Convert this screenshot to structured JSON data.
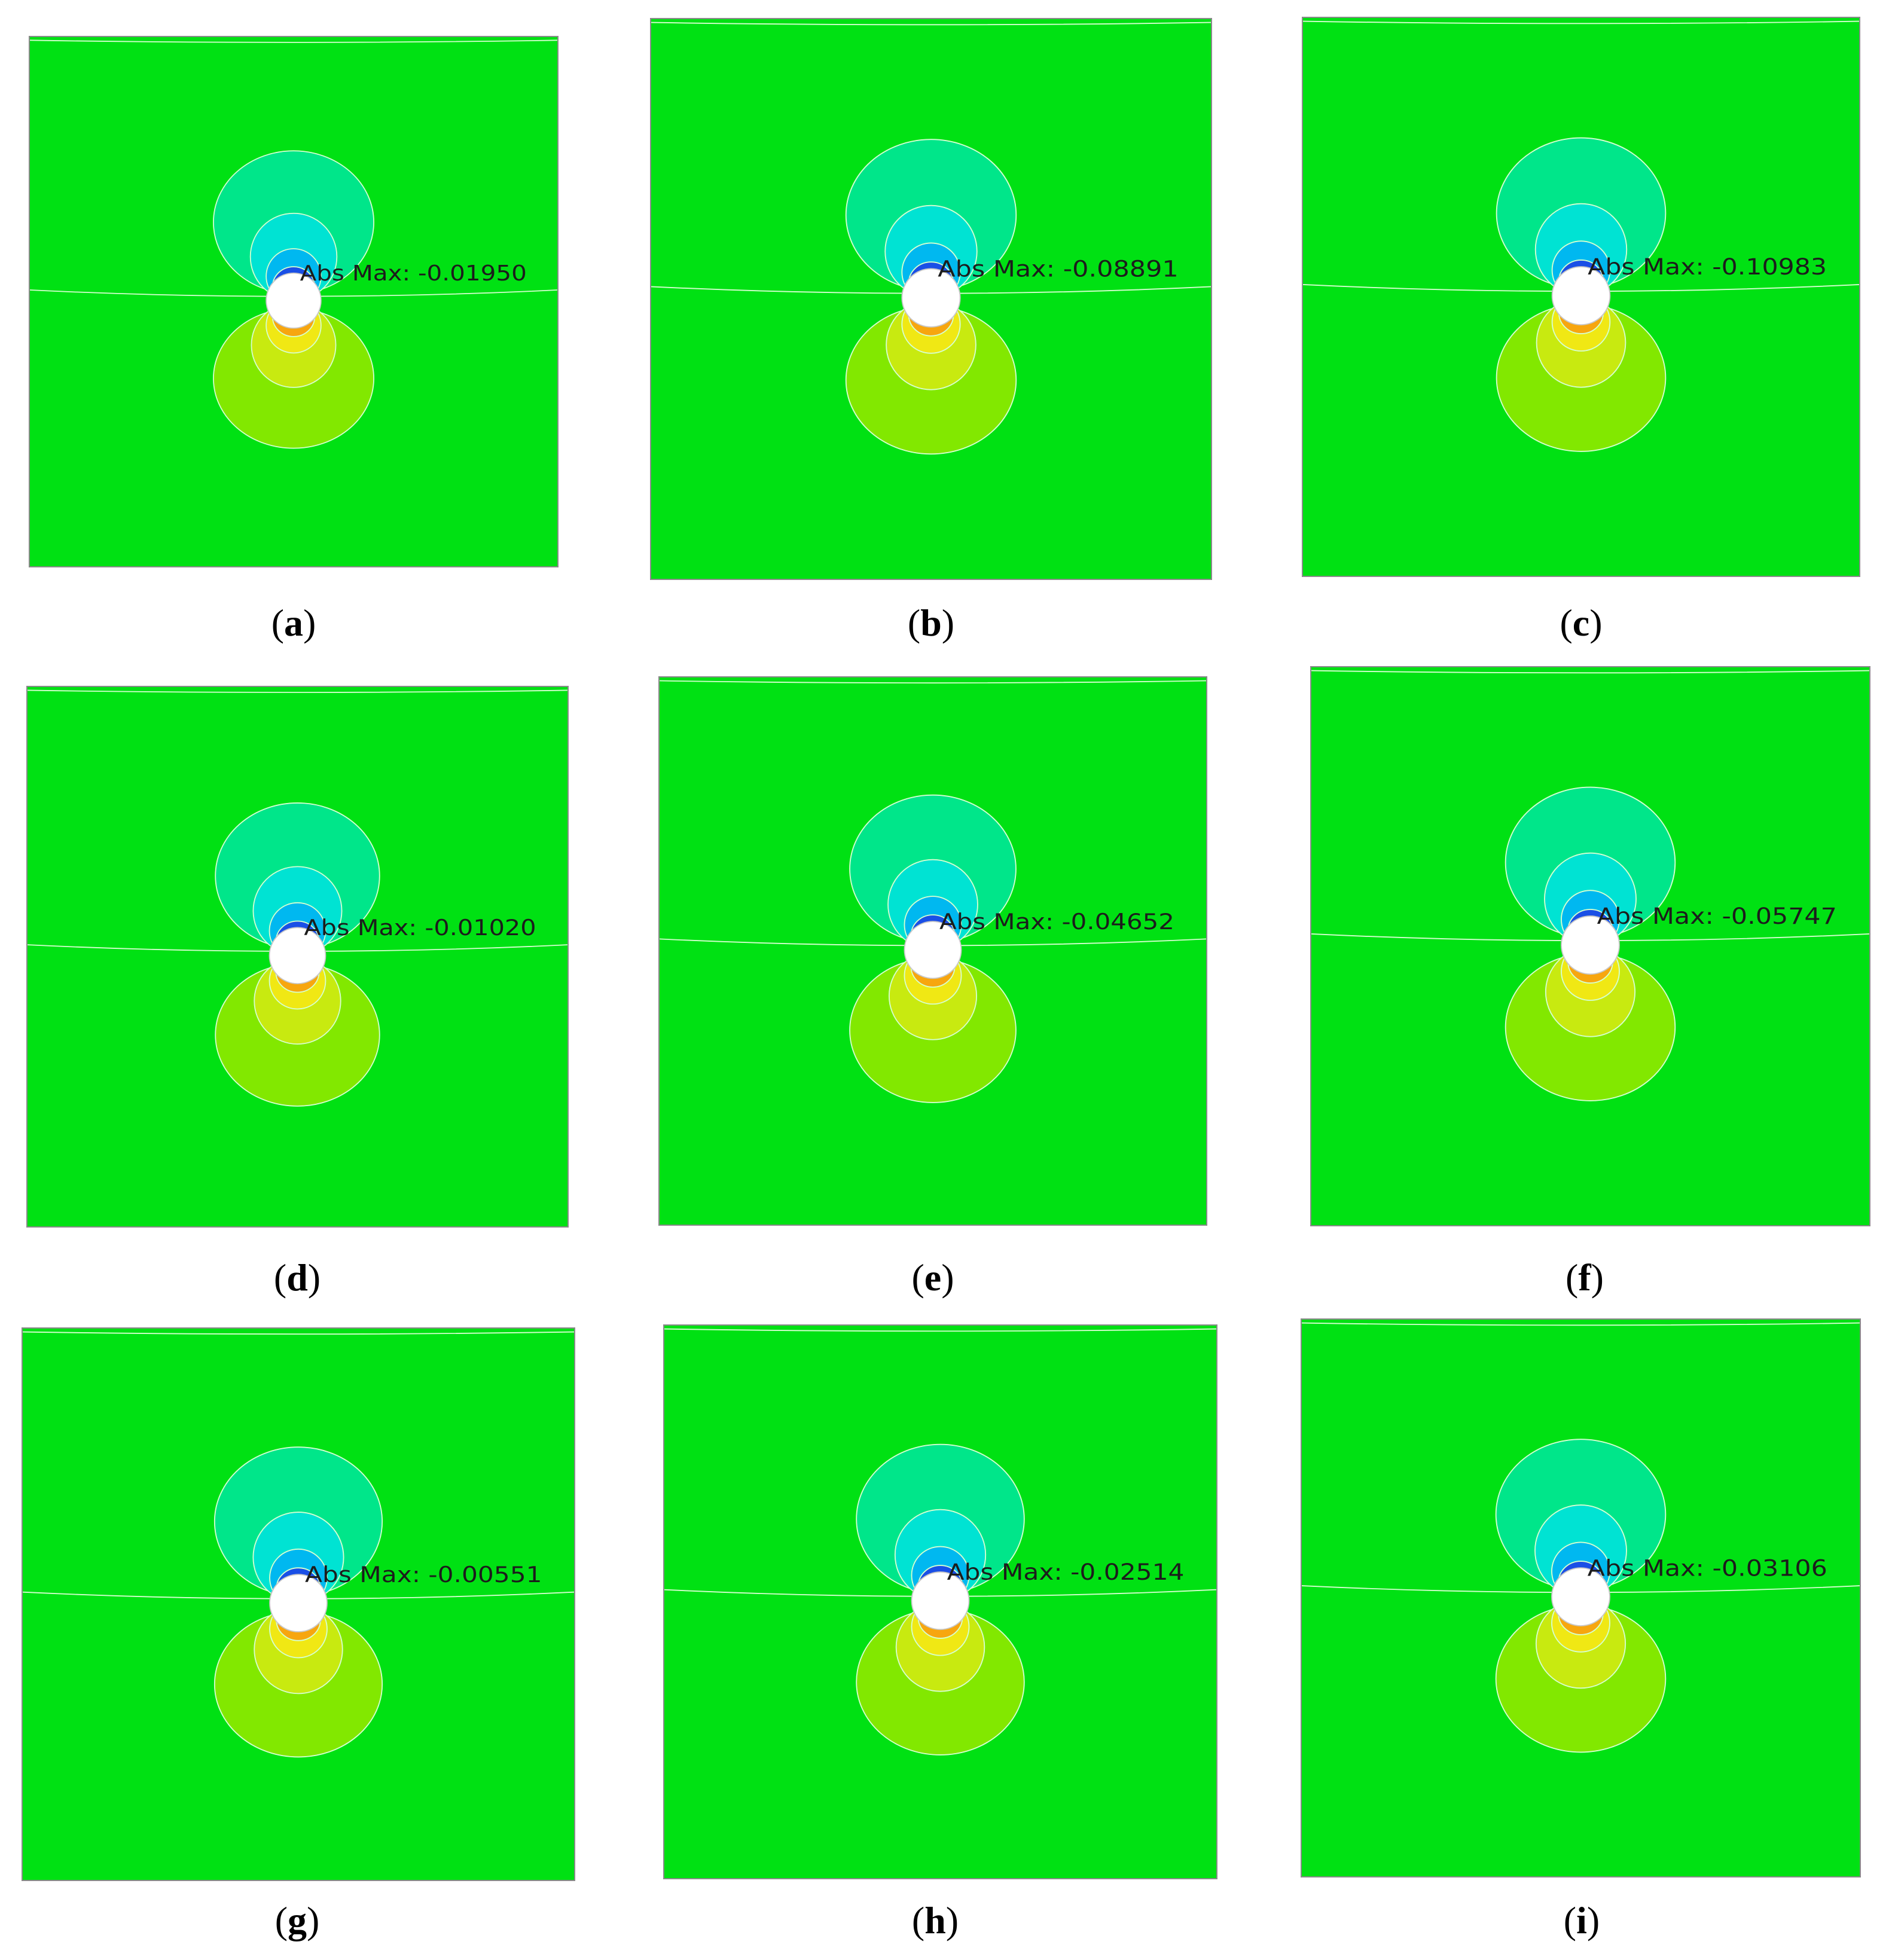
{
  "panels": [
    {
      "id": "a",
      "caption_letter": "a",
      "abs_max_label": "Abs Max: -0.01950"
    },
    {
      "id": "b",
      "caption_letter": "b",
      "abs_max_label": "Abs Max: -0.08891"
    },
    {
      "id": "c",
      "caption_letter": "c",
      "abs_max_label": "Abs Max: -0.10983"
    },
    {
      "id": "d",
      "caption_letter": "d",
      "abs_max_label": "Abs Max: -0.01020"
    },
    {
      "id": "e",
      "caption_letter": "e",
      "abs_max_label": "Abs Max: -0.04652"
    },
    {
      "id": "f",
      "caption_letter": "f",
      "abs_max_label": "Abs Max: -0.05747"
    },
    {
      "id": "g",
      "caption_letter": "g",
      "abs_max_label": "Abs Max: -0.00551"
    },
    {
      "id": "h",
      "caption_letter": "h",
      "abs_max_label": "Abs Max: -0.02514"
    },
    {
      "id": "i",
      "caption_letter": "i",
      "abs_max_label": "Abs Max: -0.03106"
    }
  ],
  "contour_colors": {
    "background": "#00e113",
    "outer_top": "#00e68a",
    "mid_top": "#00e3d3",
    "inner_top": "#00b8f0",
    "near_top": "#1a4fe6",
    "core_top": "#15189e",
    "outer_bottom": "#82e800",
    "mid_bottom": "#c8ea10",
    "inner_bottom": "#f0e814",
    "near_bottom": "#f7a60f",
    "core_bottom": "#e0331a",
    "core_bottom_dark": "#b01010",
    "hole": "#ffffff",
    "contour_line": "#d6ffd0"
  }
}
